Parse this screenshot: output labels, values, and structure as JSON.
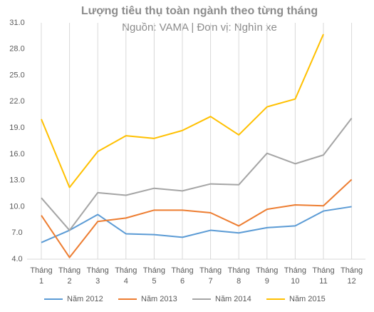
{
  "chart_data": {
    "type": "line",
    "title": "Lượng tiêu thụ toàn ngành theo từng tháng",
    "subtitle": "Nguồn: VAMA | Đơn vị: Nghìn xe",
    "categories": [
      "Tháng 1",
      "Tháng 2",
      "Tháng 3",
      "Tháng 4",
      "Tháng 5",
      "Tháng 6",
      "Tháng 7",
      "Tháng 8",
      "Tháng 9",
      "Tháng 10",
      "Tháng 11",
      "Tháng 12"
    ],
    "series": [
      {
        "name": "Năm 2012",
        "color": "#5b9bd5",
        "values": [
          5.9,
          7.3,
          9.1,
          6.9,
          6.8,
          6.5,
          7.3,
          7.0,
          7.6,
          7.8,
          9.5,
          10.0
        ]
      },
      {
        "name": "Năm 2013",
        "color": "#ed7d31",
        "values": [
          9.0,
          4.2,
          8.3,
          8.7,
          9.6,
          9.6,
          9.3,
          7.8,
          9.7,
          10.2,
          10.1,
          13.1
        ]
      },
      {
        "name": "Năm 2014",
        "color": "#a5a5a5",
        "values": [
          11.0,
          7.3,
          11.6,
          11.3,
          12.1,
          11.8,
          12.6,
          12.5,
          16.1,
          14.9,
          15.9,
          20.1
        ]
      },
      {
        "name": "Năm 2015",
        "color": "#ffc000",
        "values": [
          20.0,
          12.2,
          16.3,
          18.1,
          17.8,
          18.7,
          20.3,
          18.2,
          21.4,
          22.3,
          29.7,
          null
        ]
      }
    ],
    "ylim": [
      4,
      31
    ],
    "yticks": [
      {
        "value": 4,
        "label": "4.0"
      },
      {
        "value": 7,
        "label": "7.0"
      },
      {
        "value": 10,
        "label": "10.0"
      },
      {
        "value": 13,
        "label": "13.0"
      },
      {
        "value": 16,
        "label": "16.0"
      },
      {
        "value": 19,
        "label": "19.0"
      },
      {
        "value": 22,
        "label": "22.0"
      },
      {
        "value": 25,
        "label": "25.0"
      },
      {
        "value": 28,
        "label": "28.0"
      },
      {
        "value": 31,
        "label": "31.0"
      }
    ],
    "legend": "bottom"
  }
}
